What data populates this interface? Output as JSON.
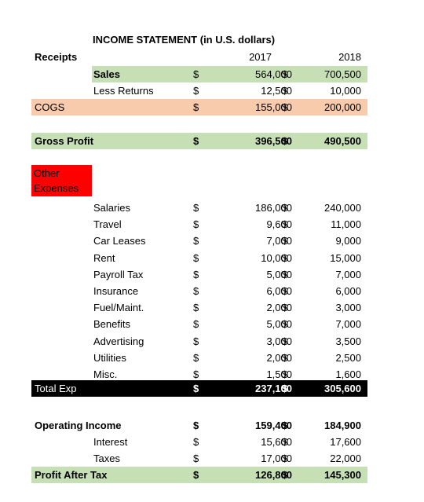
{
  "title": "INCOME STATEMENT (in U.S. dollars)",
  "labels": {
    "receipts": "Receipts",
    "other_line1": "Other",
    "other_line2": "Expenses",
    "year_2017": "2017",
    "year_2018": "2018",
    "currency": "$"
  },
  "sales": {
    "label": "Sales",
    "v2017": "564,000",
    "v2018": "700,500"
  },
  "returns": {
    "label": "Less Returns",
    "v2017": "12,500",
    "v2018": "10,000"
  },
  "cogs": {
    "label": "COGS",
    "v2017": "155,000",
    "v2018": "200,000"
  },
  "gross": {
    "label": "Gross Profit",
    "v2017": "396,500",
    "v2018": "490,500"
  },
  "expenses": [
    {
      "label": "Salaries",
      "v2017": "186,000",
      "v2018": "240,000"
    },
    {
      "label": "Travel",
      "v2017": "9,600",
      "v2018": "11,000"
    },
    {
      "label": "Car Leases",
      "v2017": "7,000",
      "v2018": "9,000"
    },
    {
      "label": "Rent",
      "v2017": "10,000",
      "v2018": "15,000"
    },
    {
      "label": "Payroll Tax",
      "v2017": "5,000",
      "v2018": "7,000"
    },
    {
      "label": "Insurance",
      "v2017": "6,000",
      "v2018": "6,000"
    },
    {
      "label": "Fuel/Maint.",
      "v2017": "2,000",
      "v2018": "3,000"
    },
    {
      "label": "Benefits",
      "v2017": "5,000",
      "v2018": "7,000"
    },
    {
      "label": "Advertising",
      "v2017": "3,000",
      "v2018": "3,500"
    },
    {
      "label": "Utilities",
      "v2017": "2,000",
      "v2018": "2,500"
    },
    {
      "label": "Misc.",
      "v2017": "1,500",
      "v2018": "1,600"
    }
  ],
  "total_exp": {
    "label": "Total Exp",
    "v2017": "237,100",
    "v2018": "305,600"
  },
  "operating": {
    "label": "Operating Income",
    "v2017": "159,400",
    "v2018": "184,900"
  },
  "interest": {
    "label": "Interest",
    "v2017": "15,600",
    "v2018": "17,600"
  },
  "taxes": {
    "label": "Taxes",
    "v2017": "17,000",
    "v2018": "22,000"
  },
  "profit": {
    "label": "Profit After Tax",
    "v2017": "126,800",
    "v2018": "145,300"
  }
}
